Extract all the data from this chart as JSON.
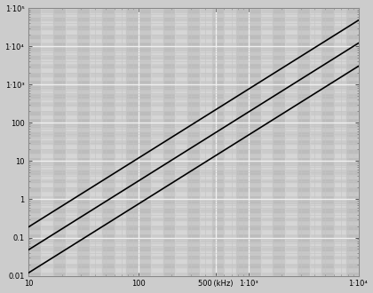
{
  "xlim": [
    10,
    10000
  ],
  "ylim": [
    0.01,
    100000
  ],
  "background_color": "#cccccc",
  "plot_bg_color": "#e0e0e0",
  "line_color": "#000000",
  "line_width": 1.2,
  "power_slope": 1.8,
  "line_starts": [
    0.012,
    0.048,
    0.19
  ],
  "x_ticks": [
    10,
    100,
    500,
    1000,
    10000
  ],
  "x_tick_labels": [
    "10",
    "100",
    "500 (kHz)",
    "1·10³",
    "1·10⁴"
  ],
  "y_ticks": [
    0.01,
    0.1,
    1,
    10,
    100,
    1000,
    10000,
    100000
  ],
  "y_tick_labels": [
    "0.01",
    "0.1",
    "1",
    "10",
    "100",
    "1·10³",
    "1·10⁴",
    "1·10⁵"
  ],
  "stripe_h_colors": [
    "#b8b8b8",
    "#d4d4d4"
  ],
  "stripe_v_colors": [
    "#c0c0c0",
    "#d8d8d8"
  ],
  "grid_major_color": "#f0f0f0",
  "grid_minor_color": "#c4c4c4",
  "figsize": [
    4.2,
    3.3
  ],
  "dpi": 100,
  "sub_divs": 9
}
